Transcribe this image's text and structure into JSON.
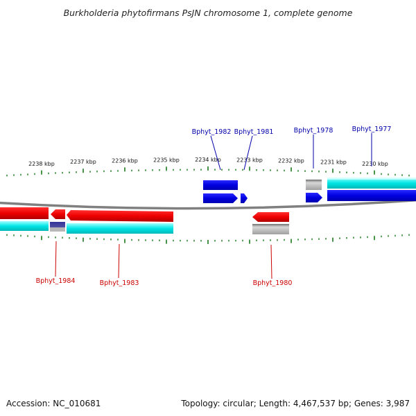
{
  "title": "Burkholderia phytofirmans PsJN chromosome 1, complete genome",
  "footer": {
    "accession": "Accession: NC_010681",
    "summary": "Topology: circular; Length: 4,467,537 bp; Genes: 3,987"
  },
  "colors": {
    "forward_gene": "#0000e6",
    "forward_label": "#0000aa",
    "reverse_gene": "#ee0000",
    "reverse_label": "#cc0000",
    "cds_feature": "#00e5e5",
    "other_feature": "#a0a0a0",
    "backbone": "#808080",
    "ticks": "#1a7a1a"
  },
  "chart_data": {
    "type": "genome-map",
    "tick_labels": [
      "2238 kbp",
      "2237 kbp",
      "2236 kbp",
      "2235 kbp",
      "2234 kbp",
      "2233 kbp",
      "2232 kbp",
      "2231 kbp",
      "2230 kbp"
    ],
    "forward_strand_labels": [
      "Bphyt_1982",
      "Bphyt_1981",
      "Bphyt_1978",
      "Bphyt_1977"
    ],
    "reverse_strand_labels": [
      "Bphyt_1984",
      "Bphyt_1983",
      "Bphyt_1980"
    ]
  }
}
